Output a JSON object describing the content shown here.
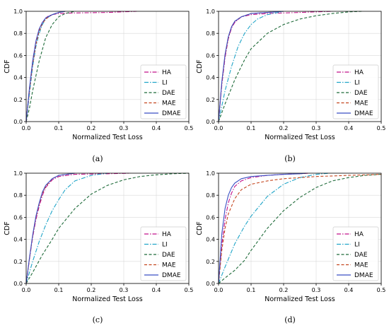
{
  "colors": {
    "HA": "#c2128a",
    "LI": "#20a5c8",
    "DAE": "#1f6b3a",
    "MAE": "#c4461f",
    "DMAE": "#3b4fc4"
  },
  "chart_data": [
    {
      "type": "line",
      "caption": "(a)",
      "xlabel": "Normalized Test Loss",
      "ylabel": "CDF",
      "xlim": [
        0.0,
        0.5
      ],
      "ylim": [
        0.0,
        1.0
      ],
      "xticks": [
        "0.0",
        "0.1",
        "0.2",
        "0.3",
        "0.4",
        "0.5"
      ],
      "yticks": [
        "0.0",
        "0.2",
        "0.4",
        "0.6",
        "0.8",
        "1.0"
      ],
      "grid": true,
      "legend_position": "lower-right",
      "series": [
        {
          "name": "HA",
          "dash": "dashdot",
          "x": [
            0,
            0.01,
            0.02,
            0.03,
            0.04,
            0.05,
            0.06,
            0.07,
            0.08,
            0.1,
            0.15,
            0.25,
            0.34
          ],
          "y": [
            0,
            0.3,
            0.55,
            0.73,
            0.84,
            0.9,
            0.94,
            0.96,
            0.97,
            0.98,
            0.985,
            0.99,
            1.0
          ]
        },
        {
          "name": "LI",
          "dash": "dashdot",
          "x": [
            0,
            0.01,
            0.02,
            0.03,
            0.04,
            0.05,
            0.06,
            0.08,
            0.1,
            0.12
          ],
          "y": [
            0,
            0.25,
            0.5,
            0.68,
            0.8,
            0.88,
            0.93,
            0.97,
            0.99,
            1.0
          ]
        },
        {
          "name": "DAE",
          "dash": "dashed",
          "x": [
            0,
            0.01,
            0.02,
            0.04,
            0.06,
            0.08,
            0.1,
            0.12,
            0.15
          ],
          "y": [
            0,
            0.12,
            0.28,
            0.55,
            0.76,
            0.88,
            0.95,
            0.98,
            1.0
          ]
        },
        {
          "name": "MAE",
          "dash": "dashed",
          "x": [
            0,
            0.01,
            0.02,
            0.03,
            0.04,
            0.05,
            0.06,
            0.08,
            0.1,
            0.12
          ],
          "y": [
            0,
            0.27,
            0.52,
            0.7,
            0.82,
            0.89,
            0.93,
            0.97,
            0.99,
            1.0
          ]
        },
        {
          "name": "DMAE",
          "dash": "solid",
          "x": [
            0,
            0.01,
            0.02,
            0.03,
            0.04,
            0.05,
            0.06,
            0.08,
            0.1,
            0.12
          ],
          "y": [
            0,
            0.3,
            0.55,
            0.73,
            0.84,
            0.9,
            0.94,
            0.97,
            0.99,
            1.0
          ]
        }
      ]
    },
    {
      "type": "line",
      "caption": "(b)",
      "xlabel": "Normalized Test Loss",
      "ylabel": "CDF",
      "xlim": [
        0.0,
        0.5
      ],
      "ylim": [
        0.0,
        1.0
      ],
      "xticks": [
        "0.0",
        "0.1",
        "0.2",
        "0.3",
        "0.4",
        "0.5"
      ],
      "yticks": [
        "0.0",
        "0.2",
        "0.4",
        "0.6",
        "0.8",
        "1.0"
      ],
      "grid": true,
      "legend_position": "lower-right",
      "series": [
        {
          "name": "HA",
          "dash": "dashdot",
          "x": [
            0,
            0.01,
            0.02,
            0.03,
            0.04,
            0.05,
            0.07,
            0.1,
            0.15,
            0.25,
            0.35
          ],
          "y": [
            0,
            0.33,
            0.58,
            0.75,
            0.85,
            0.9,
            0.95,
            0.97,
            0.98,
            0.99,
            1.0
          ]
        },
        {
          "name": "LI",
          "dash": "dashdot",
          "x": [
            0,
            0.02,
            0.04,
            0.06,
            0.08,
            0.1,
            0.12,
            0.15,
            0.2
          ],
          "y": [
            0,
            0.28,
            0.5,
            0.68,
            0.8,
            0.88,
            0.93,
            0.97,
            1.0
          ]
        },
        {
          "name": "DAE",
          "dash": "dashed",
          "x": [
            0,
            0.02,
            0.05,
            0.08,
            0.1,
            0.15,
            0.2,
            0.25,
            0.3,
            0.35,
            0.4,
            0.44
          ],
          "y": [
            0,
            0.16,
            0.38,
            0.56,
            0.66,
            0.8,
            0.88,
            0.93,
            0.96,
            0.98,
            0.995,
            1.0
          ]
        },
        {
          "name": "MAE",
          "dash": "dashed",
          "x": [
            0,
            0.01,
            0.02,
            0.03,
            0.04,
            0.05,
            0.07,
            0.1,
            0.15,
            0.2
          ],
          "y": [
            0,
            0.35,
            0.6,
            0.76,
            0.86,
            0.91,
            0.95,
            0.98,
            0.99,
            1.0
          ]
        },
        {
          "name": "DMAE",
          "dash": "solid",
          "x": [
            0,
            0.01,
            0.02,
            0.03,
            0.04,
            0.05,
            0.07,
            0.1,
            0.15,
            0.2
          ],
          "y": [
            0,
            0.36,
            0.61,
            0.77,
            0.86,
            0.91,
            0.95,
            0.98,
            0.99,
            1.0
          ]
        }
      ]
    },
    {
      "type": "line",
      "caption": "(c)",
      "xlabel": "Normalized Test Loss",
      "ylabel": "CDF",
      "xlim": [
        0.0,
        0.5
      ],
      "ylim": [
        0.0,
        1.0
      ],
      "xticks": [
        "0.0",
        "0.1",
        "0.2",
        "0.3",
        "0.4",
        "0.5"
      ],
      "yticks": [
        "0.0",
        "0.2",
        "0.4",
        "0.6",
        "0.8",
        "1.0"
      ],
      "grid": true,
      "legend_position": "lower-right",
      "series": [
        {
          "name": "HA",
          "dash": "dashdot",
          "x": [
            0,
            0.01,
            0.02,
            0.03,
            0.04,
            0.05,
            0.06,
            0.08,
            0.1,
            0.15,
            0.25,
            0.32
          ],
          "y": [
            0,
            0.22,
            0.42,
            0.58,
            0.7,
            0.8,
            0.87,
            0.94,
            0.97,
            0.99,
            0.995,
            1.0
          ]
        },
        {
          "name": "LI",
          "dash": "dashdot",
          "x": [
            0,
            0.02,
            0.04,
            0.06,
            0.08,
            0.1,
            0.12,
            0.15,
            0.2,
            0.25
          ],
          "y": [
            0,
            0.2,
            0.38,
            0.53,
            0.66,
            0.76,
            0.85,
            0.93,
            0.98,
            1.0
          ]
        },
        {
          "name": "DAE",
          "dash": "dashed",
          "x": [
            0,
            0.02,
            0.05,
            0.08,
            0.1,
            0.15,
            0.2,
            0.25,
            0.3,
            0.35,
            0.4,
            0.45,
            0.5
          ],
          "y": [
            0,
            0.1,
            0.26,
            0.4,
            0.5,
            0.68,
            0.81,
            0.89,
            0.94,
            0.97,
            0.985,
            0.995,
            1.0
          ]
        },
        {
          "name": "MAE",
          "dash": "dashed",
          "x": [
            0,
            0.01,
            0.02,
            0.03,
            0.04,
            0.05,
            0.06,
            0.08,
            0.1,
            0.15
          ],
          "y": [
            0,
            0.22,
            0.43,
            0.6,
            0.72,
            0.82,
            0.88,
            0.95,
            0.98,
            1.0
          ]
        },
        {
          "name": "DMAE",
          "dash": "solid",
          "x": [
            0,
            0.01,
            0.02,
            0.03,
            0.04,
            0.05,
            0.06,
            0.08,
            0.1,
            0.15
          ],
          "y": [
            0,
            0.23,
            0.44,
            0.61,
            0.73,
            0.83,
            0.89,
            0.95,
            0.98,
            1.0
          ]
        }
      ]
    },
    {
      "type": "line",
      "caption": "(d)",
      "xlabel": "Normalized Test Loss",
      "ylabel": "CDF",
      "xlim": [
        0.0,
        0.5
      ],
      "ylim": [
        0.0,
        1.0
      ],
      "xticks": [
        "0.0",
        "0.1",
        "0.2",
        "0.3",
        "0.4",
        "0.5"
      ],
      "yticks": [
        "0.0",
        "0.2",
        "0.4",
        "0.6",
        "0.8",
        "1.0"
      ],
      "grid": true,
      "legend_position": "lower-right",
      "series": [
        {
          "name": "HA",
          "dash": "dashdot",
          "x": [
            0,
            0.01,
            0.02,
            0.03,
            0.04,
            0.05,
            0.07,
            0.1,
            0.15,
            0.2,
            0.25,
            0.28
          ],
          "y": [
            0,
            0.35,
            0.58,
            0.73,
            0.82,
            0.88,
            0.93,
            0.96,
            0.98,
            0.99,
            0.995,
            1.0
          ]
        },
        {
          "name": "LI",
          "dash": "dashdot",
          "x": [
            0,
            0.02,
            0.05,
            0.08,
            0.1,
            0.15,
            0.2,
            0.25,
            0.3,
            0.34
          ],
          "y": [
            0,
            0.15,
            0.36,
            0.52,
            0.61,
            0.79,
            0.9,
            0.96,
            0.99,
            1.0
          ]
        },
        {
          "name": "DAE",
          "dash": "dashed",
          "x": [
            0,
            0.02,
            0.05,
            0.08,
            0.1,
            0.15,
            0.2,
            0.25,
            0.3,
            0.35,
            0.4,
            0.45,
            0.5
          ],
          "y": [
            0,
            0.05,
            0.12,
            0.21,
            0.3,
            0.5,
            0.66,
            0.78,
            0.87,
            0.93,
            0.96,
            0.98,
            0.99
          ]
        },
        {
          "name": "MAE",
          "dash": "dashed",
          "x": [
            0,
            0.01,
            0.02,
            0.03,
            0.05,
            0.07,
            0.1,
            0.15,
            0.2,
            0.3,
            0.4,
            0.5
          ],
          "y": [
            0,
            0.3,
            0.5,
            0.63,
            0.77,
            0.85,
            0.9,
            0.93,
            0.95,
            0.97,
            0.98,
            0.99
          ]
        },
        {
          "name": "DMAE",
          "dash": "solid",
          "x": [
            0,
            0.01,
            0.02,
            0.03,
            0.04,
            0.05,
            0.07,
            0.1,
            0.15,
            0.2,
            0.25,
            0.27
          ],
          "y": [
            0,
            0.45,
            0.68,
            0.8,
            0.87,
            0.91,
            0.95,
            0.97,
            0.98,
            0.99,
            0.995,
            1.0
          ]
        }
      ]
    }
  ]
}
